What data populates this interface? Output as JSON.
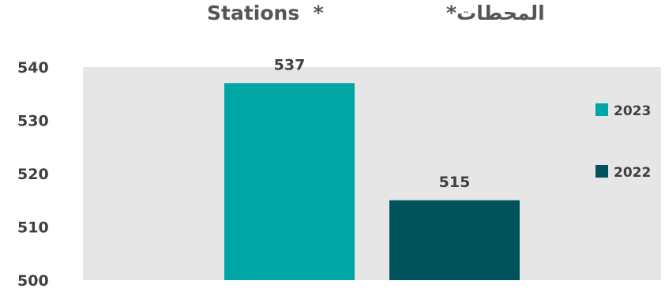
{
  "header": {
    "title_en": "Stations  *",
    "title_ar": "*المحطات"
  },
  "chart_data": {
    "type": "bar",
    "series": [
      {
        "name": "2023",
        "value": 537,
        "color": "#00A5A5"
      },
      {
        "name": "2022",
        "value": 515,
        "color": "#00535A"
      }
    ],
    "ylim": [
      500,
      540
    ],
    "yticks": [
      500,
      510,
      520,
      530,
      540
    ],
    "grid": false,
    "legend_position": "right",
    "plot_background": "#E6E6E6"
  }
}
